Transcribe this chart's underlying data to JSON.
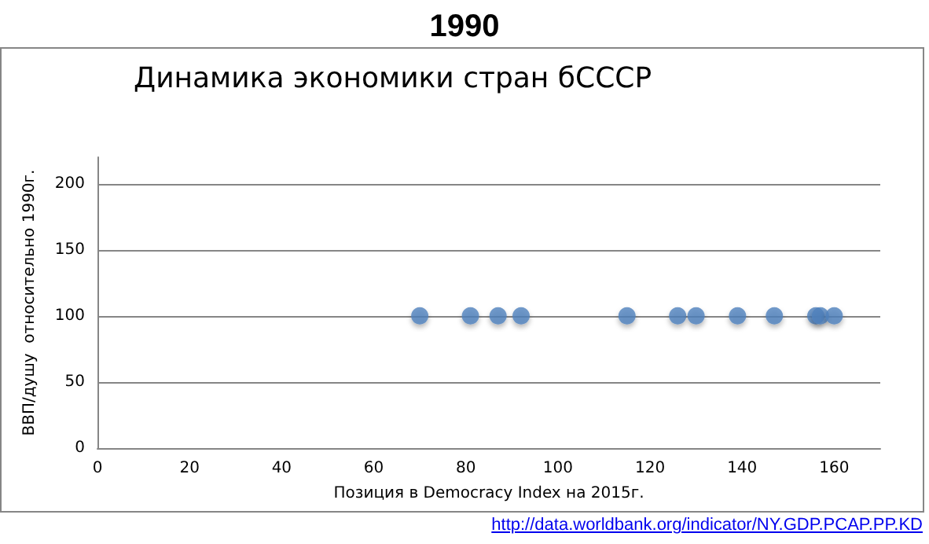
{
  "chart_data": {
    "type": "scatter",
    "title": "1990",
    "subtitle": "Динамика экономики стран бСССР",
    "xlabel": "Позиция в Democracy Index на 2015г.",
    "ylabel": "ВВП/душу  относительно 1990г.",
    "annotations": [
      "http://data.worldbank.org/indicator/NY.GDP.PCAP.PP.KD"
    ],
    "x": [
      70,
      81,
      87,
      92,
      115,
      126,
      130,
      139,
      147,
      156,
      157,
      160
    ],
    "series": [
      {
        "color": "#4f81bd",
        "values": [
          100,
          100,
          100,
          100,
          100,
          100,
          100,
          100,
          100,
          100,
          100,
          100
        ]
      }
    ],
    "xlim": [
      0,
      170
    ],
    "xticks": [
      0,
      20,
      40,
      60,
      80,
      100,
      120,
      140,
      160
    ],
    "ylim": [
      0,
      220
    ],
    "yticks": [
      0,
      50,
      100,
      150,
      200
    ],
    "grid": "y",
    "marker": "circle"
  }
}
